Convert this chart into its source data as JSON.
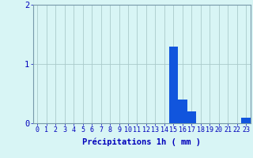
{
  "hours": [
    0,
    1,
    2,
    3,
    4,
    5,
    6,
    7,
    8,
    9,
    10,
    11,
    12,
    13,
    14,
    15,
    16,
    17,
    18,
    19,
    20,
    21,
    22,
    23
  ],
  "values": [
    0,
    0,
    0,
    0,
    0,
    0,
    0,
    0,
    0,
    0,
    0,
    0,
    0,
    0,
    0,
    1.3,
    0.4,
    0.2,
    0,
    0,
    0,
    0,
    0,
    0.1
  ],
  "bar_color": "#1155dd",
  "background_color": "#d8f5f5",
  "grid_color": "#aacaca",
  "axis_color": "#0000bb",
  "spine_color": "#7799aa",
  "xlabel": "Précipitations 1h ( mm )",
  "xlabel_fontsize": 7.5,
  "tick_fontsize": 6.0,
  "ytick_fontsize": 7.5,
  "ylim": [
    0,
    2
  ],
  "yticks": [
    0,
    1,
    2
  ],
  "figsize": [
    3.2,
    2.0
  ],
  "dpi": 100
}
